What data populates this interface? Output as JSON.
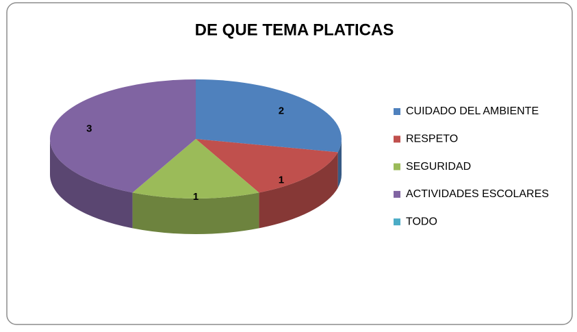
{
  "chart_data": {
    "type": "pie",
    "title": "DE QUE TEMA PLATICAS",
    "categories": [
      "CUIDADO DEL AMBIENTE",
      "RESPETO",
      "SEGURIDAD",
      "ACTIVIDADES ESCOLARES",
      "TODO"
    ],
    "values": [
      2,
      1,
      1,
      3,
      0
    ],
    "colors": [
      "#4f81bd",
      "#c0504d",
      "#9bbb59",
      "#8064a2",
      "#4bacc6"
    ],
    "legend": "right"
  }
}
